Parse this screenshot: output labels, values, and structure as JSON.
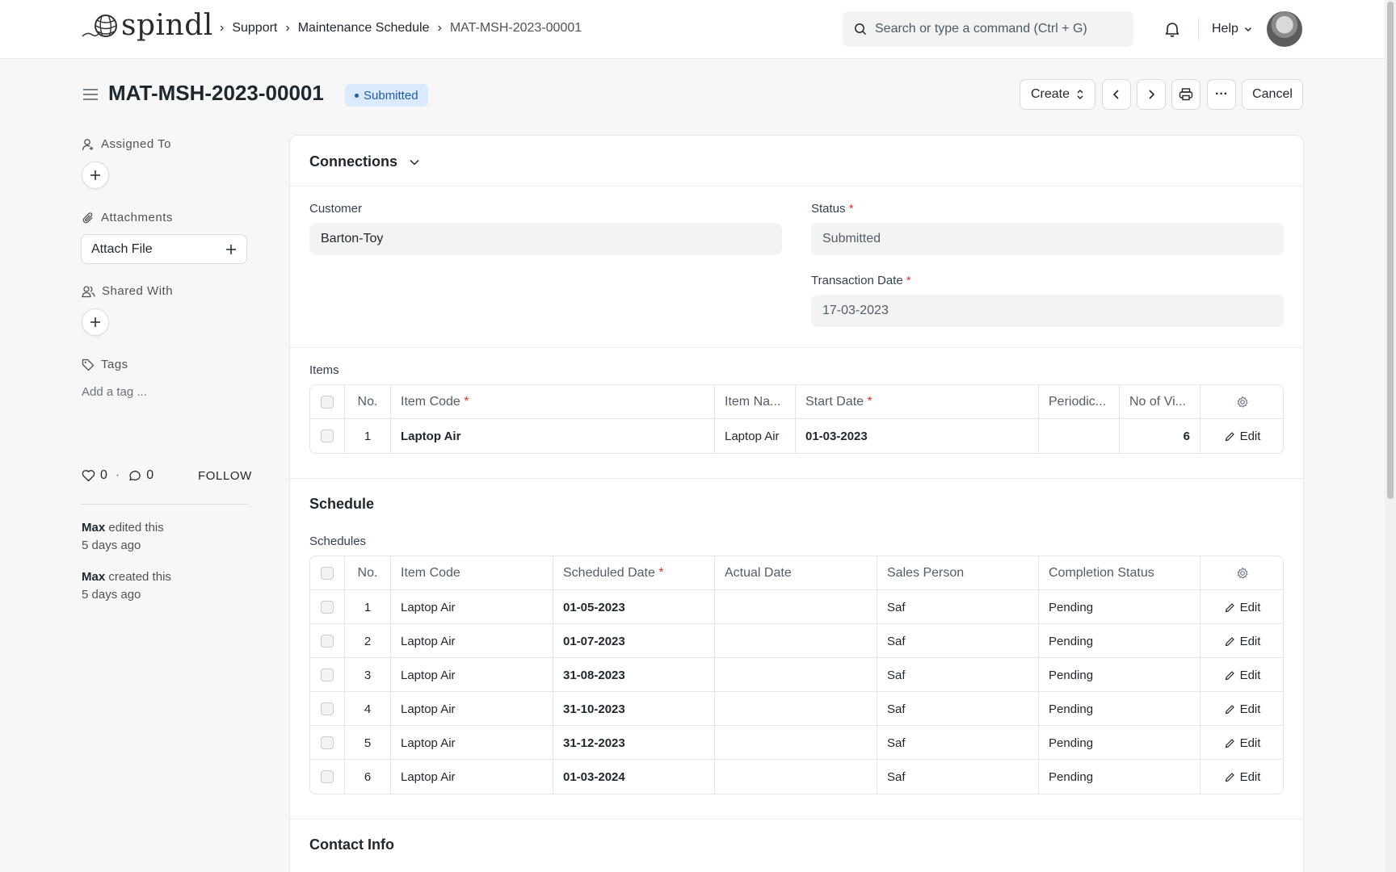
{
  "navbar": {
    "logo_text": "spindl",
    "breadcrumbs": [
      "Support",
      "Maintenance Schedule",
      "MAT-MSH-2023-00001"
    ],
    "search_placeholder": "Search or type a command (Ctrl + G)",
    "help_label": "Help"
  },
  "page": {
    "title": "MAT-MSH-2023-00001",
    "status": "Submitted",
    "create_label": "Create",
    "cancel_label": "Cancel",
    "more_label": "···"
  },
  "sidebar": {
    "assigned_to": "Assigned To",
    "attachments": "Attachments",
    "attach_file": "Attach File",
    "shared_with": "Shared With",
    "tags": "Tags",
    "add_tag": "Add a tag ...",
    "likes": "0",
    "comments": "0",
    "dot_sep": "·",
    "follow": "FOLLOW",
    "activity": [
      {
        "user": "Max",
        "action": "edited this",
        "time": "5 days ago"
      },
      {
        "user": "Max",
        "action": "created this",
        "time": "5 days ago"
      }
    ]
  },
  "form": {
    "connections_title": "Connections",
    "customer_label": "Customer",
    "customer_value": "Barton-Toy",
    "status_label": "Status",
    "status_value": "Submitted",
    "transaction_date_label": "Transaction Date",
    "transaction_date_value": "17-03-2023",
    "required_mark": "*",
    "items_label": "Items",
    "items_headers": {
      "no": "No.",
      "item_code": "Item Code",
      "item_name": "Item Na...",
      "start_date": "Start Date",
      "periodicity": "Periodic...",
      "no_of_visits": "No of Vi..."
    },
    "items_rows": [
      {
        "no": "1",
        "item_code": "Laptop Air",
        "item_name": "Laptop Air",
        "start_date": "01-03-2023",
        "periodicity": "",
        "no_of_visits": "6",
        "edit": "Edit"
      }
    ],
    "schedule_title": "Schedule",
    "schedules_label": "Schedules",
    "schedules_headers": {
      "no": "No.",
      "item_code": "Item Code",
      "scheduled_date": "Scheduled Date",
      "actual_date": "Actual Date",
      "sales_person": "Sales Person",
      "completion_status": "Completion Status"
    },
    "schedules_rows": [
      {
        "no": "1",
        "item_code": "Laptop Air",
        "scheduled_date": "01-05-2023",
        "actual_date": "",
        "sales_person": "Saf",
        "completion_status": "Pending",
        "edit": "Edit"
      },
      {
        "no": "2",
        "item_code": "Laptop Air",
        "scheduled_date": "01-07-2023",
        "actual_date": "",
        "sales_person": "Saf",
        "completion_status": "Pending",
        "edit": "Edit"
      },
      {
        "no": "3",
        "item_code": "Laptop Air",
        "scheduled_date": "31-08-2023",
        "actual_date": "",
        "sales_person": "Saf",
        "completion_status": "Pending",
        "edit": "Edit"
      },
      {
        "no": "4",
        "item_code": "Laptop Air",
        "scheduled_date": "31-10-2023",
        "actual_date": "",
        "sales_person": "Saf",
        "completion_status": "Pending",
        "edit": "Edit"
      },
      {
        "no": "5",
        "item_code": "Laptop Air",
        "scheduled_date": "31-12-2023",
        "actual_date": "",
        "sales_person": "Saf",
        "completion_status": "Pending",
        "edit": "Edit"
      },
      {
        "no": "6",
        "item_code": "Laptop Air",
        "scheduled_date": "01-03-2024",
        "actual_date": "",
        "sales_person": "Saf",
        "completion_status": "Pending",
        "edit": "Edit"
      }
    ],
    "contact_info_title": "Contact Info"
  },
  "colors": {
    "status_pill_bg": "#dbeafe",
    "status_pill_text": "#1e5ba8",
    "required": "#e03636"
  }
}
